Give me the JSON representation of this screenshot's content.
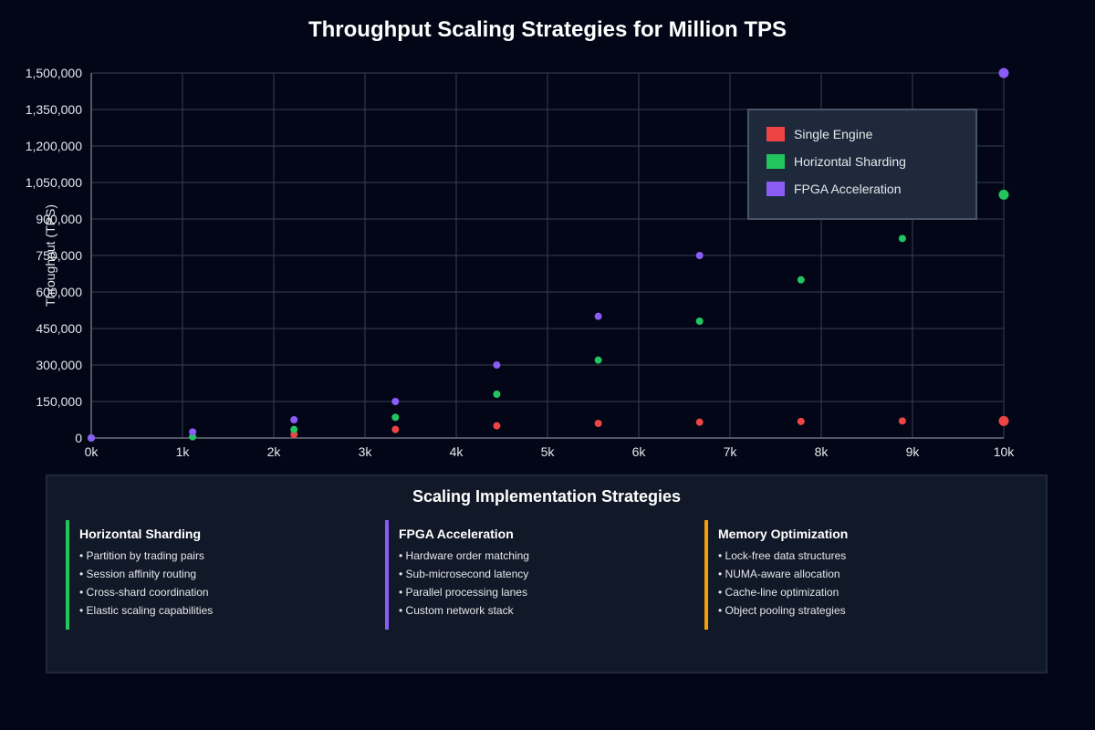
{
  "chart_data": {
    "type": "scatter",
    "title": "Throughput Scaling Strategies for Million TPS",
    "xlabel": "",
    "ylabel": "Throughput (TPS)",
    "xlim": [
      0,
      10000
    ],
    "ylim": [
      0,
      1500000
    ],
    "x_ticks": [
      0,
      1000,
      2000,
      3000,
      4000,
      5000,
      6000,
      7000,
      8000,
      9000,
      10000
    ],
    "x_tick_labels": [
      "0k",
      "1k",
      "2k",
      "3k",
      "4k",
      "5k",
      "6k",
      "7k",
      "8k",
      "9k",
      "10k"
    ],
    "y_ticks": [
      0,
      150000,
      300000,
      450000,
      600000,
      750000,
      900000,
      1050000,
      1200000,
      1350000,
      1500000
    ],
    "y_tick_labels": [
      "0",
      "150,000",
      "300,000",
      "450,000",
      "600,000",
      "750,000",
      "900,000",
      "1,050,000",
      "1,200,000",
      "1,350,000",
      "1,500,000"
    ],
    "grid": true,
    "legend_position": "top-right",
    "x": [
      0,
      1111,
      2222,
      3333,
      4444,
      5556,
      6667,
      7778,
      8889,
      10000
    ],
    "series": [
      {
        "name": "Single Engine",
        "color": "#ef4444",
        "values": [
          0,
          5000,
          15000,
          35000,
          50000,
          60000,
          65000,
          68000,
          70000,
          70000
        ]
      },
      {
        "name": "Horizontal Sharding",
        "color": "#22c55e",
        "values": [
          0,
          5000,
          35000,
          85000,
          180000,
          320000,
          480000,
          650000,
          820000,
          1000000
        ]
      },
      {
        "name": "FPGA Acceleration",
        "color": "#8b5cf6",
        "values": [
          0,
          25000,
          75000,
          150000,
          300000,
          500000,
          750000,
          null,
          null,
          1500000
        ]
      }
    ]
  },
  "strategies": {
    "title": "Scaling Implementation Strategies",
    "cards": [
      {
        "heading": "Horizontal Sharding",
        "color": "#22c55e",
        "items": [
          "• Partition by trading pairs",
          "• Session affinity routing",
          "• Cross-shard coordination",
          "• Elastic scaling capabilities"
        ]
      },
      {
        "heading": "FPGA Acceleration",
        "color": "#8b5cf6",
        "items": [
          "• Hardware order matching",
          "• Sub-microsecond latency",
          "• Parallel processing lanes",
          "• Custom network stack"
        ]
      },
      {
        "heading": "Memory Optimization",
        "color": "#f59e0b",
        "items": [
          "• Lock-free data structures",
          "• NUMA-aware allocation",
          "• Cache-line optimization",
          "• Object pooling strategies"
        ]
      }
    ]
  }
}
